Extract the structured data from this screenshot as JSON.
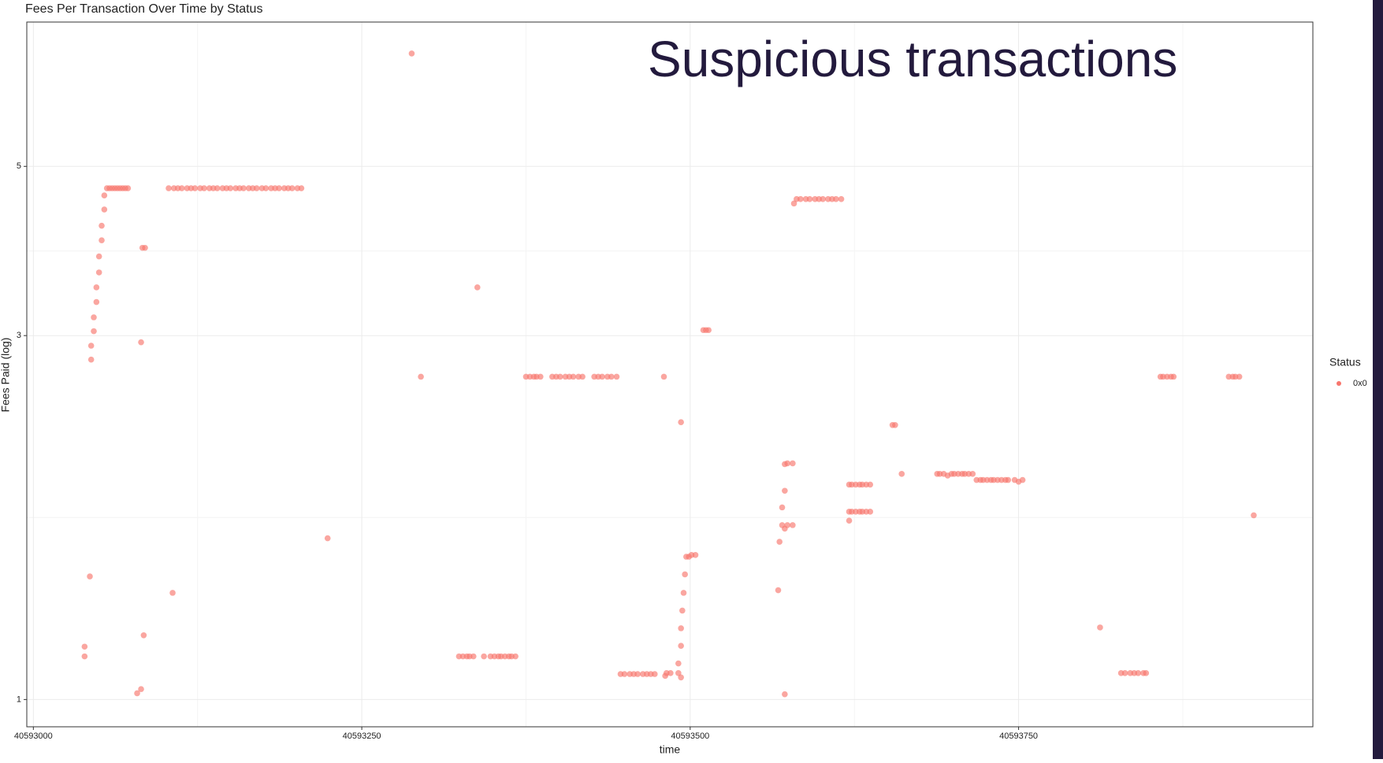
{
  "chart_data": {
    "type": "scatter",
    "title": "Fees Per Transaction Over Time by Status",
    "annotation": "Suspicious transactions",
    "x_label": "time",
    "y_label": "Fees Paid (log)",
    "legend_title": "Status",
    "log_y": true,
    "grid": true,
    "legend": "right",
    "xlim": [
      40592995,
      40593974
    ],
    "ylim": [
      0.921,
      7.73
    ],
    "xticks": [
      40593000,
      40593250,
      40593500,
      40593750
    ],
    "yticks": [
      1,
      3,
      5
    ],
    "x": [
      40593039,
      40593039,
      40593044,
      40593044,
      40593046,
      40593046,
      40593048,
      40593048,
      40593050,
      40593050,
      40593052,
      40593052,
      40593054,
      40593054,
      40593056,
      40593058,
      40593060,
      40593062,
      40593064,
      40593066,
      40593068,
      40593070,
      40593072,
      40593043,
      40593079,
      40593082,
      40593082,
      40593083,
      40593085,
      40593084,
      40593106,
      40593103,
      40593107,
      40593110,
      40593113,
      40593117,
      40593120,
      40593123,
      40593127,
      40593130,
      40593134,
      40593137,
      40593140,
      40593144,
      40593147,
      40593150,
      40593154,
      40593157,
      40593160,
      40593164,
      40593167,
      40593170,
      40593174,
      40593177,
      40593181,
      40593184,
      40593187,
      40593191,
      40593194,
      40593197,
      40593201,
      40593204,
      40593224,
      40593288,
      40593295,
      40593338,
      40593375,
      40593378,
      40593381,
      40593383,
      40593386,
      40593395,
      40593398,
      40593401,
      40593405,
      40593408,
      40593411,
      40593415,
      40593418,
      40593427,
      40593430,
      40593433,
      40593437,
      40593440,
      40593444,
      40593480,
      40593324,
      40593327,
      40593330,
      40593332,
      40593335,
      40593343,
      40593348,
      40593351,
      40593354,
      40593356,
      40593359,
      40593362,
      40593364,
      40593367,
      40593447,
      40593450,
      40593454,
      40593457,
      40593460,
      40593464,
      40593467,
      40593470,
      40593473,
      40593481,
      40593482,
      40593485,
      40593491,
      40593493,
      40593493,
      40593491,
      40593493,
      40593493,
      40593494,
      40593495,
      40593496,
      40593497,
      40593499,
      40593501,
      40593504,
      40593510,
      40593512,
      40593514,
      40593567,
      40593568,
      40593570,
      40593570,
      40593572,
      40593572,
      40593574,
      40593578,
      40593572,
      40593572,
      40593574,
      40593578,
      40593579,
      40593581,
      40593584,
      40593588,
      40593591,
      40593595,
      40593598,
      40593601,
      40593605,
      40593608,
      40593611,
      40593615,
      40593621,
      40593623,
      40593626,
      40593629,
      40593631,
      40593634,
      40593637,
      40593621,
      40593623,
      40593626,
      40593629,
      40593631,
      40593634,
      40593637,
      40593621,
      40593654,
      40593656,
      40593661,
      40593688,
      40593690,
      40593693,
      40593696,
      40593699,
      40593701,
      40593704,
      40593707,
      40593709,
      40593712,
      40593715,
      40593718,
      40593721,
      40593723,
      40593726,
      40593729,
      40593731,
      40593734,
      40593737,
      40593740,
      40593742,
      40593747,
      40593750,
      40593753,
      40593812,
      40593929,
      40593828,
      40593831,
      40593835,
      40593838,
      40593841,
      40593845,
      40593847,
      40593858,
      40593860,
      40593863,
      40593866,
      40593868,
      40593910,
      40593913,
      40593915,
      40593918
    ],
    "series": [
      {
        "name": "0x0",
        "color": "#F8766D",
        "values": [
          1.173,
          1.139,
          2.79,
          2.91,
          3.04,
          3.17,
          3.32,
          3.47,
          3.63,
          3.81,
          4.0,
          4.18,
          4.39,
          4.58,
          4.68,
          4.68,
          4.68,
          4.68,
          4.68,
          4.68,
          4.68,
          4.68,
          4.68,
          1.45,
          1.019,
          1.032,
          2.94,
          3.91,
          3.91,
          1.214,
          1.38,
          4.68,
          4.68,
          4.68,
          4.68,
          4.68,
          4.68,
          4.68,
          4.68,
          4.68,
          4.68,
          4.68,
          4.68,
          4.68,
          4.68,
          4.68,
          4.68,
          4.68,
          4.68,
          4.68,
          4.68,
          4.68,
          4.68,
          4.68,
          4.68,
          4.68,
          4.68,
          4.68,
          4.68,
          4.68,
          4.68,
          4.68,
          1.627,
          7.03,
          2.65,
          3.47,
          2.65,
          2.65,
          2.65,
          2.65,
          2.65,
          2.65,
          2.65,
          2.65,
          2.65,
          2.65,
          2.65,
          2.65,
          2.65,
          2.65,
          2.65,
          2.65,
          2.65,
          2.65,
          2.65,
          2.65,
          1.139,
          1.139,
          1.139,
          1.139,
          1.139,
          1.139,
          1.139,
          1.139,
          1.139,
          1.139,
          1.139,
          1.139,
          1.139,
          1.139,
          1.08,
          1.08,
          1.08,
          1.08,
          1.08,
          1.08,
          1.08,
          1.08,
          1.08,
          1.074,
          1.083,
          1.083,
          1.083,
          1.069,
          2.31,
          1.115,
          1.176,
          1.24,
          1.308,
          1.38,
          1.459,
          1.539,
          1.539,
          1.547,
          1.547,
          3.05,
          3.05,
          3.05,
          1.391,
          1.61,
          1.693,
          1.786,
          1.878,
          2.035,
          2.04,
          2.04,
          1.016,
          1.675,
          1.693,
          1.693,
          4.47,
          4.53,
          4.53,
          4.53,
          4.53,
          4.53,
          4.53,
          4.53,
          4.53,
          4.53,
          4.53,
          4.53,
          1.913,
          1.913,
          1.913,
          1.913,
          1.913,
          1.913,
          1.913,
          1.763,
          1.763,
          1.763,
          1.763,
          1.763,
          1.763,
          1.763,
          1.716,
          2.29,
          2.29,
          1.976,
          1.976,
          1.976,
          1.976,
          1.966,
          1.976,
          1.976,
          1.976,
          1.976,
          1.976,
          1.976,
          1.976,
          1.94,
          1.94,
          1.94,
          1.94,
          1.94,
          1.94,
          1.94,
          1.94,
          1.94,
          1.94,
          1.94,
          1.93,
          1.94,
          1.243,
          1.744,
          1.083,
          1.083,
          1.083,
          1.083,
          1.083,
          1.083,
          1.083,
          2.65,
          2.65,
          2.65,
          2.65,
          2.65,
          2.65,
          2.65,
          2.65,
          2.65
        ]
      }
    ]
  }
}
